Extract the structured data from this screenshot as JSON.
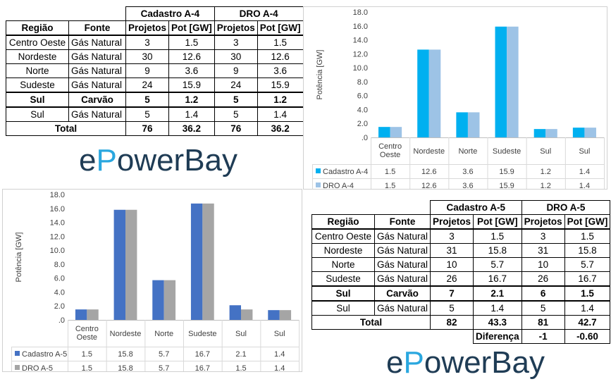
{
  "table_a4": {
    "group1": "Cadastro A-4",
    "group2": "DRO A-4",
    "col_regiao": "Região",
    "col_fonte": "Fonte",
    "col_proj": "Projetos",
    "col_pot": "Pot [GW]",
    "rows": [
      {
        "regiao": "Centro Oeste",
        "fonte": "Gás Natural",
        "p1": "3",
        "g1": "1.5",
        "p2": "3",
        "g2": "1.5"
      },
      {
        "regiao": "Nordeste",
        "fonte": "Gás Natural",
        "p1": "30",
        "g1": "12.6",
        "p2": "30",
        "g2": "12.6"
      },
      {
        "regiao": "Norte",
        "fonte": "Gás Natural",
        "p1": "9",
        "g1": "3.6",
        "p2": "9",
        "g2": "3.6"
      },
      {
        "regiao": "Sudeste",
        "fonte": "Gás Natural",
        "p1": "24",
        "g1": "15.9",
        "p2": "24",
        "g2": "15.9"
      },
      {
        "regiao": "Sul",
        "fonte": "Carvão",
        "p1": "5",
        "g1": "1.2",
        "p2": "5",
        "g2": "1.2"
      },
      {
        "regiao": "Sul",
        "fonte": "Gás Natural",
        "p1": "5",
        "g1": "1.4",
        "p2": "5",
        "g2": "1.4"
      }
    ],
    "total_label": "Total",
    "total_p1": "76",
    "total_g1": "36.2",
    "total_p2": "76",
    "total_g2": "36.2"
  },
  "table_a5": {
    "group1": "Cadastro A-5",
    "group2": "DRO A-5",
    "col_regiao": "Região",
    "col_fonte": "Fonte",
    "col_proj": "Projetos",
    "col_pot": "Pot [GW]",
    "rows": [
      {
        "regiao": "Centro Oeste",
        "fonte": "Gás Natural",
        "p1": "3",
        "g1": "1.5",
        "p2": "3",
        "g2": "1.5"
      },
      {
        "regiao": "Nordeste",
        "fonte": "Gás Natural",
        "p1": "31",
        "g1": "15.8",
        "p2": "31",
        "g2": "15.8"
      },
      {
        "regiao": "Norte",
        "fonte": "Gás Natural",
        "p1": "10",
        "g1": "5.7",
        "p2": "10",
        "g2": "5.7"
      },
      {
        "regiao": "Sudeste",
        "fonte": "Gás Natural",
        "p1": "26",
        "g1": "16.7",
        "p2": "26",
        "g2": "16.7"
      },
      {
        "regiao": "Sul",
        "fonte": "Carvão",
        "p1": "7",
        "g1": "2.1",
        "p2": "6",
        "g2": "1.5"
      },
      {
        "regiao": "Sul",
        "fonte": "Gás Natural",
        "p1": "5",
        "g1": "1.4",
        "p2": "5",
        "g2": "1.4"
      }
    ],
    "total_label": "Total",
    "total_p1": "82",
    "total_g1": "43.3",
    "total_p2": "81",
    "total_g2": "42.7",
    "diff_label": "Diferença",
    "diff_p": "-1",
    "diff_g": "-0.60"
  },
  "logo": {
    "pre": "e",
    "bolt": "P",
    "post": "owerBay"
  },
  "chart_data": [
    {
      "type": "bar",
      "categories": [
        "Centro Oeste",
        "Nordeste",
        "Norte",
        "Sudeste",
        "Sul",
        "Sul"
      ],
      "series": [
        {
          "name": "Cadastro A-4",
          "values": [
            1.5,
            12.6,
            3.6,
            15.9,
            1.2,
            1.4
          ],
          "color": "#00b0f0"
        },
        {
          "name": "DRO A-4",
          "values": [
            1.5,
            12.6,
            3.6,
            15.9,
            1.2,
            1.4
          ],
          "color": "#9dc3e6"
        }
      ],
      "ylabel": "Potência [GW]",
      "ylim": [
        0,
        18
      ],
      "yticks": [
        "0",
        "2.0",
        "4.0",
        "6.0",
        "8.0",
        "10.0",
        "12.0",
        "14.0",
        "16.0",
        "18.0"
      ],
      "grid": false,
      "legend": "data-table"
    },
    {
      "type": "bar",
      "categories": [
        "Centro Oeste",
        "Nordeste",
        "Norte",
        "Sudeste",
        "Sul",
        "Sul"
      ],
      "series": [
        {
          "name": "Cadastro A-5",
          "values": [
            1.5,
            15.8,
            5.7,
            16.7,
            2.1,
            1.4
          ],
          "color": "#4472c4"
        },
        {
          "name": "DRO A-5",
          "values": [
            1.5,
            15.8,
            5.7,
            16.7,
            1.5,
            1.4
          ],
          "color": "#a5a5a5"
        }
      ],
      "ylabel": "Potência [GW]",
      "ylim": [
        0,
        18
      ],
      "yticks": [
        "0",
        "2.0",
        "4.0",
        "6.0",
        "8.0",
        "10.0",
        "12.0",
        "14.0",
        "16.0",
        "18.0"
      ],
      "grid": false,
      "legend": "data-table"
    }
  ]
}
